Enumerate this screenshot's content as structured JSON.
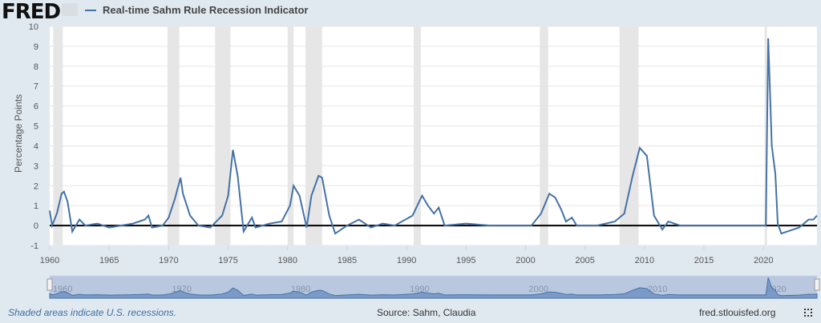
{
  "header": {
    "logo": "FRED",
    "series_name": "Real-time Sahm Rule Recession Indicator"
  },
  "footer": {
    "note": "Shaded areas indicate U.S. recessions.",
    "source": "Source: Sahm, Claudia",
    "site": "fred.stlouisfed.org"
  },
  "colors": {
    "line": "#4572a7",
    "recession": "#e6e6e6",
    "background": "#e1e9f0"
  },
  "chart_data": {
    "type": "line",
    "title": "Real-time Sahm Rule Recession Indicator",
    "ylabel": "Percentage Points",
    "xlabel": "",
    "ylim": [
      -1,
      10
    ],
    "xlim": [
      1960,
      2024.5
    ],
    "yticks": [
      "-1",
      "0",
      "1",
      "2",
      "3",
      "4",
      "5",
      "6",
      "7",
      "8",
      "9",
      "10"
    ],
    "xticks": [
      "1960",
      "1965",
      "1970",
      "1975",
      "1980",
      "1985",
      "1990",
      "1995",
      "2000",
      "2005",
      "2010",
      "2015",
      "2020"
    ],
    "navigator_ticks": [
      "1960",
      "1970",
      "1980",
      "1990",
      "2000",
      "2010",
      "2020"
    ],
    "recessions": [
      [
        1960.3,
        1961.1
      ],
      [
        1969.9,
        1970.9
      ],
      [
        1973.9,
        1975.2
      ],
      [
        1980.0,
        1980.5
      ],
      [
        1981.5,
        1982.9
      ],
      [
        1990.6,
        1991.2
      ],
      [
        2001.2,
        2001.9
      ],
      [
        2007.9,
        2009.5
      ],
      [
        2020.1,
        2020.3
      ]
    ],
    "x": [
      1960.0,
      1960.2,
      1960.6,
      1961.0,
      1961.2,
      1961.5,
      1961.9,
      1962.5,
      1963.0,
      1964.0,
      1965.0,
      1966.0,
      1967.0,
      1968.0,
      1968.3,
      1968.6,
      1969.5,
      1970.0,
      1970.5,
      1971.0,
      1971.2,
      1971.8,
      1972.5,
      1973.5,
      1974.5,
      1975.0,
      1975.4,
      1975.8,
      1976.3,
      1977.0,
      1977.3,
      1978.5,
      1979.5,
      1980.2,
      1980.5,
      1981.0,
      1981.6,
      1982.0,
      1982.6,
      1982.9,
      1983.5,
      1984.0,
      1985.0,
      1986.0,
      1987.0,
      1988.0,
      1989.0,
      1990.5,
      1991.3,
      1991.8,
      1992.3,
      1992.7,
      1993.2,
      1995.0,
      1997.0,
      1999.0,
      2000.5,
      2001.3,
      2002.0,
      2002.5,
      2003.0,
      2003.4,
      2003.9,
      2004.3,
      2006.0,
      2007.5,
      2008.3,
      2009.0,
      2009.6,
      2010.2,
      2010.8,
      2011.5,
      2012.0,
      2013.0,
      2015.0,
      2017.0,
      2019.9,
      2020.2,
      2020.4,
      2020.7,
      2021.0,
      2021.2,
      2021.5,
      2022.0,
      2023.0,
      2023.8,
      2024.2,
      2024.5
    ],
    "values": [
      0.75,
      0.0,
      0.6,
      1.6,
      1.7,
      1.2,
      -0.3,
      0.3,
      0.0,
      0.1,
      -0.1,
      0.0,
      0.1,
      0.3,
      0.5,
      -0.1,
      0.0,
      0.4,
      1.3,
      2.4,
      1.6,
      0.5,
      0.0,
      -0.1,
      0.5,
      1.5,
      3.8,
      2.5,
      -0.3,
      0.4,
      -0.1,
      0.1,
      0.2,
      1.0,
      2.0,
      1.5,
      -0.1,
      1.5,
      2.5,
      2.4,
      0.5,
      -0.4,
      0.0,
      0.3,
      -0.1,
      0.1,
      0.0,
      0.5,
      1.5,
      1.0,
      0.6,
      0.9,
      0.0,
      0.1,
      0.0,
      0.0,
      0.0,
      0.6,
      1.6,
      1.4,
      0.8,
      0.2,
      0.4,
      0.0,
      0.0,
      0.2,
      0.6,
      2.5,
      3.9,
      3.5,
      0.5,
      -0.2,
      0.2,
      0.0,
      0.0,
      0.0,
      0.0,
      0.0,
      9.4,
      4.0,
      2.6,
      0.1,
      -0.4,
      -0.3,
      -0.1,
      0.3,
      0.3,
      0.5
    ]
  }
}
